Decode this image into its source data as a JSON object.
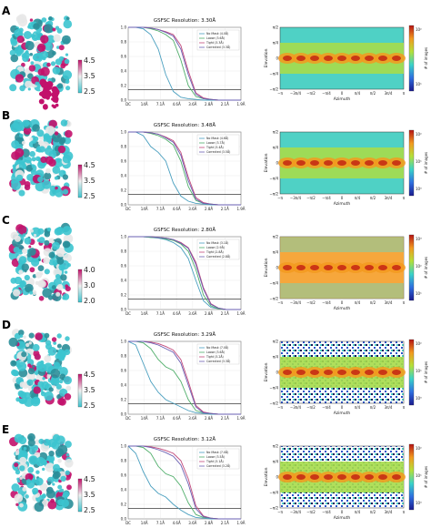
{
  "colors": {
    "no_mask": "#4a9fbf",
    "loose": "#4fae6a",
    "tight": "#c1497a",
    "corrected": "#6a5fb3",
    "map_cyan": "#3cc4cf",
    "map_magenta": "#c2116b"
  },
  "fsc_x_ticks": [
    "DC",
    "14Å",
    "7.1Å",
    "4.6Å",
    "3.6Å",
    "2.8Å",
    "2.1Å",
    "1.9Å"
  ],
  "fsc_y_ticks": [
    "1.0",
    "0.8",
    "0.6",
    "0.4",
    "0.2",
    "0.0"
  ],
  "dist_x_ticks": [
    "−π",
    "−3π/4",
    "−π/2",
    "−π/4",
    "0",
    "π/4",
    "π/2",
    "3π/4",
    "π"
  ],
  "dist_y_ticks": [
    "π/2",
    "π/4",
    "0",
    "−π/4",
    "−π/2"
  ],
  "dist_xlabel": "Azimuth",
  "dist_ylabel": "Elevation",
  "cbar_label": "# of images",
  "chart_data": [
    {
      "panel": "A",
      "type": "line",
      "title": "GSFSC Resolution: 3.30Å",
      "ylim": [
        0,
        1
      ],
      "threshold": 0.143,
      "local_res_ticks": [
        "4.5",
        "3.5",
        "2.5"
      ],
      "series": [
        {
          "name": "No Mask (4.0Å)",
          "values": [
            1.0,
            1.0,
            0.98,
            0.9,
            0.7,
            0.35,
            0.12,
            0.04,
            0.02,
            0.01,
            0.0,
            0.0,
            0.0,
            0.0,
            0.0,
            0.0
          ]
        },
        {
          "name": "Loose (3.6Å)",
          "values": [
            1.0,
            1.0,
            1.0,
            0.98,
            0.95,
            0.9,
            0.82,
            0.55,
            0.2,
            0.05,
            0.02,
            0.01,
            0.0,
            0.0,
            0.0,
            0.0
          ]
        },
        {
          "name": "Tight (3.3Å)",
          "values": [
            1.0,
            1.0,
            1.0,
            0.99,
            0.97,
            0.94,
            0.9,
            0.75,
            0.4,
            0.1,
            0.03,
            0.01,
            0.0,
            0.0,
            0.0,
            0.0
          ]
        },
        {
          "name": "Corrected (3.3Å)",
          "values": [
            1.0,
            1.0,
            1.0,
            0.99,
            0.97,
            0.93,
            0.88,
            0.7,
            0.35,
            0.08,
            0.02,
            0.01,
            0.0,
            0.0,
            0.0,
            0.0
          ]
        }
      ],
      "cbar_ticks": [
        "10²",
        "10¹"
      ]
    },
    {
      "panel": "B",
      "type": "line",
      "title": "GSFSC Resolution: 3.48Å",
      "ylim": [
        0,
        1
      ],
      "threshold": 0.143,
      "local_res_ticks": [
        "4.5",
        "3.5",
        "2.5"
      ],
      "series": [
        {
          "name": "No Mask (4.6Å)",
          "values": [
            1.0,
            1.0,
            0.95,
            0.8,
            0.72,
            0.6,
            0.3,
            0.12,
            0.05,
            0.02,
            0.01,
            0.0,
            0.0,
            0.0,
            0.0,
            0.0
          ]
        },
        {
          "name": "Loose (3.7Å)",
          "values": [
            1.0,
            1.0,
            1.0,
            0.98,
            0.95,
            0.9,
            0.82,
            0.6,
            0.25,
            0.06,
            0.02,
            0.01,
            0.0,
            0.0,
            0.0,
            0.0
          ]
        },
        {
          "name": "Tight (3.4Å)",
          "values": [
            1.0,
            1.0,
            1.0,
            0.99,
            0.97,
            0.93,
            0.88,
            0.72,
            0.38,
            0.1,
            0.03,
            0.01,
            0.0,
            0.0,
            0.0,
            0.0
          ]
        },
        {
          "name": "Corrected (3.5Å)",
          "values": [
            1.0,
            1.0,
            1.0,
            0.99,
            0.97,
            0.92,
            0.86,
            0.68,
            0.33,
            0.08,
            0.02,
            0.01,
            0.0,
            0.0,
            0.0,
            0.0
          ]
        }
      ],
      "cbar_ticks": [
        "10²",
        "10¹",
        "10⁰"
      ]
    },
    {
      "panel": "C",
      "type": "line",
      "title": "GSFSC Resolution: 2.80Å",
      "ylim": [
        0,
        1
      ],
      "threshold": 0.143,
      "local_res_ticks": [
        "4.0",
        "3.0",
        "2.0"
      ],
      "series": [
        {
          "name": "No Mask (3.1Å)",
          "values": [
            1.0,
            1.0,
            1.0,
            0.99,
            0.98,
            0.96,
            0.92,
            0.85,
            0.7,
            0.4,
            0.12,
            0.03,
            0.01,
            0.0,
            0.0,
            0.0
          ]
        },
        {
          "name": "Loose (2.9Å)",
          "values": [
            1.0,
            1.0,
            1.0,
            0.99,
            0.99,
            0.97,
            0.95,
            0.9,
            0.8,
            0.55,
            0.2,
            0.05,
            0.01,
            0.0,
            0.0,
            0.0
          ]
        },
        {
          "name": "Tight (2.8Å)",
          "values": [
            1.0,
            1.0,
            1.0,
            1.0,
            0.99,
            0.98,
            0.96,
            0.92,
            0.85,
            0.65,
            0.3,
            0.08,
            0.02,
            0.0,
            0.0,
            0.0
          ]
        },
        {
          "name": "Corrected (2.8Å)",
          "values": [
            1.0,
            1.0,
            1.0,
            1.0,
            0.99,
            0.98,
            0.96,
            0.91,
            0.84,
            0.62,
            0.28,
            0.07,
            0.02,
            0.0,
            0.0,
            0.0
          ]
        }
      ],
      "cbar_ticks": [
        "10³",
        "10²",
        "10¹"
      ]
    },
    {
      "panel": "D",
      "type": "line",
      "title": "GSFSC Resolution: 3.29Å",
      "ylim": [
        0,
        1
      ],
      "threshold": 0.143,
      "local_res_ticks": [
        "4.5",
        "3.5",
        "2.5"
      ],
      "series": [
        {
          "name": "No Mask (7.0Å)",
          "values": [
            1.0,
            0.95,
            0.7,
            0.45,
            0.3,
            0.2,
            0.15,
            0.1,
            0.05,
            0.02,
            0.01,
            0.0,
            0.0,
            0.0,
            0.0,
            0.0
          ]
        },
        {
          "name": "Loose (3.6Å)",
          "values": [
            1.0,
            1.0,
            0.98,
            0.9,
            0.75,
            0.65,
            0.6,
            0.45,
            0.2,
            0.05,
            0.02,
            0.01,
            0.0,
            0.0,
            0.0,
            0.0
          ]
        },
        {
          "name": "Tight (3.2Å)",
          "values": [
            1.0,
            1.0,
            1.0,
            0.99,
            0.97,
            0.93,
            0.88,
            0.75,
            0.45,
            0.12,
            0.03,
            0.01,
            0.0,
            0.0,
            0.0,
            0.0
          ]
        },
        {
          "name": "Corrected (3.3Å)",
          "values": [
            1.0,
            1.0,
            1.0,
            0.98,
            0.95,
            0.9,
            0.85,
            0.7,
            0.4,
            0.1,
            0.02,
            0.01,
            0.0,
            0.0,
            0.0,
            0.0
          ]
        }
      ],
      "cbar_ticks": [
        "10²",
        "10¹",
        "10⁰"
      ]
    },
    {
      "panel": "E",
      "type": "line",
      "title": "GSFSC Resolution: 3.12Å",
      "ylim": [
        0,
        1
      ],
      "threshold": 0.143,
      "local_res_ticks": [
        "4.5",
        "3.5",
        "2.5"
      ],
      "series": [
        {
          "name": "No Mask (7.0Å)",
          "values": [
            1.0,
            0.9,
            0.65,
            0.45,
            0.35,
            0.3,
            0.2,
            0.12,
            0.06,
            0.02,
            0.01,
            0.0,
            0.0,
            0.0,
            0.0,
            0.0
          ]
        },
        {
          "name": "Loose (3.5Å)",
          "values": [
            1.0,
            1.0,
            0.98,
            0.9,
            0.72,
            0.62,
            0.58,
            0.45,
            0.22,
            0.06,
            0.02,
            0.01,
            0.0,
            0.0,
            0.0,
            0.0
          ]
        },
        {
          "name": "Tight (3.1Å)",
          "values": [
            1.0,
            1.0,
            1.0,
            0.99,
            0.97,
            0.94,
            0.9,
            0.8,
            0.55,
            0.18,
            0.04,
            0.01,
            0.0,
            0.0,
            0.0,
            0.0
          ]
        },
        {
          "name": "Corrected (3.2Å)",
          "values": [
            1.0,
            1.0,
            1.0,
            0.98,
            0.95,
            0.91,
            0.86,
            0.74,
            0.48,
            0.14,
            0.03,
            0.01,
            0.0,
            0.0,
            0.0,
            0.0
          ]
        }
      ],
      "cbar_ticks": [
        "10²",
        "10¹",
        "10⁰"
      ]
    }
  ]
}
